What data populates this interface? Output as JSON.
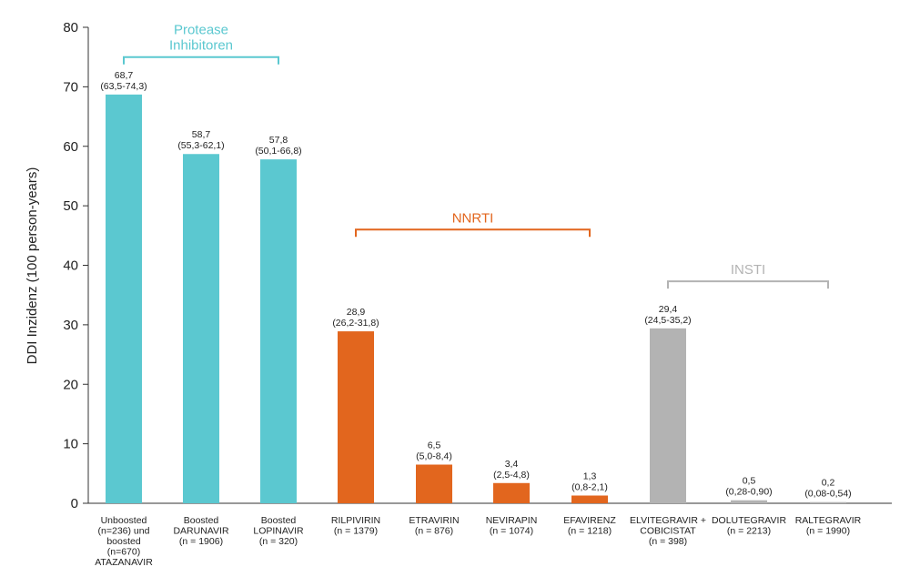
{
  "chart_data": {
    "type": "bar",
    "ylabel": "DDI Inzidenz (100 person-years)",
    "ylim": [
      0,
      80
    ],
    "yticks": [
      0,
      10,
      20,
      30,
      40,
      50,
      60,
      70,
      80
    ],
    "grid": false,
    "categories": [
      {
        "lines": [
          "Unboosted",
          "(n=236) und",
          "boosted",
          "(n=670)",
          "ATAZANAVIR"
        ],
        "value": 68.7,
        "value_label": "68,7",
        "ci_label": "(63,5-74,3)",
        "group": 0
      },
      {
        "lines": [
          "Boosted",
          "DARUNAVIR",
          "(n = 1906)"
        ],
        "value": 58.7,
        "value_label": "58,7",
        "ci_label": "(55,3-62,1)",
        "group": 0
      },
      {
        "lines": [
          "Boosted",
          "LOPINAVIR",
          "(n = 320)"
        ],
        "value": 57.8,
        "value_label": "57,8",
        "ci_label": "(50,1-66,8)",
        "group": 0
      },
      {
        "lines": [
          "RILPIVIRIN",
          "(n = 1379)"
        ],
        "value": 28.9,
        "value_label": "28,9",
        "ci_label": "(26,2-31,8)",
        "group": 1
      },
      {
        "lines": [
          "ETRAVIRIN",
          "(n = 876)"
        ],
        "value": 6.5,
        "value_label": "6,5",
        "ci_label": "(5,0-8,4)",
        "group": 1
      },
      {
        "lines": [
          "NEVIRAPIN",
          "(n = 1074)"
        ],
        "value": 3.4,
        "value_label": "3,4",
        "ci_label": "(2,5-4,8)",
        "group": 1
      },
      {
        "lines": [
          "EFAVIRENZ",
          "(n = 1218)"
        ],
        "value": 1.3,
        "value_label": "1,3",
        "ci_label": "(0,8-2,1)",
        "group": 1
      },
      {
        "lines": [
          "ELVITEGRAVIR +",
          "COBICISTAT",
          "(n = 398)"
        ],
        "value": 29.4,
        "value_label": "29,4",
        "ci_label": "(24,5-35,2)",
        "group": 2
      },
      {
        "lines": [
          "DOLUTEGRAVIR",
          "(n = 2213)"
        ],
        "value": 0.5,
        "value_label": "0,5",
        "ci_label": "(0,28-0,90)",
        "group": 2
      },
      {
        "lines": [
          "RALTEGRAVIR",
          "(n = 1990)"
        ],
        "value": 0.2,
        "value_label": "0,2",
        "ci_label": "(0,08-0,54)",
        "group": 2
      }
    ],
    "groups": [
      {
        "label_lines": [
          "Protease",
          "Inhibitoren"
        ],
        "color": "#5bc8d0",
        "first": 0,
        "last": 2,
        "bracket_value": 75
      },
      {
        "label_lines": [
          "NNRTI"
        ],
        "color": "#e2661e",
        "first": 3,
        "last": 6,
        "bracket_value": 46
      },
      {
        "label_lines": [
          "INSTI"
        ],
        "color": "#b3b3b3",
        "first": 7,
        "last": 9,
        "bracket_value": 37.3
      }
    ]
  }
}
